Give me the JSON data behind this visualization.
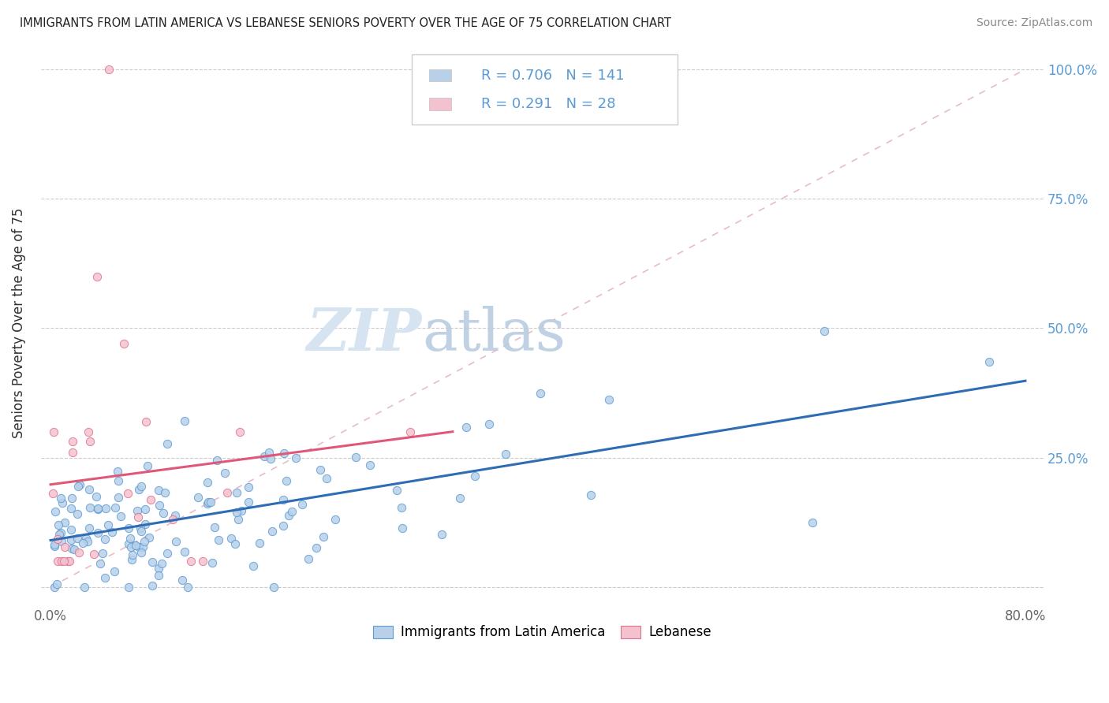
{
  "title": "IMMIGRANTS FROM LATIN AMERICA VS LEBANESE SENIORS POVERTY OVER THE AGE OF 75 CORRELATION CHART",
  "source": "Source: ZipAtlas.com",
  "ylabel": "Seniors Poverty Over the Age of 75",
  "watermark_zip": "ZIP",
  "watermark_atlas": "atlas",
  "legend_label_1": "Immigrants from Latin America",
  "legend_label_2": "Lebanese",
  "R1": 0.706,
  "N1": 141,
  "R2": 0.291,
  "N2": 28,
  "color_blue_fill": "#b8d0e8",
  "color_blue_edge": "#5b9bd5",
  "color_pink_fill": "#f4c2ce",
  "color_pink_edge": "#e07090",
  "trendline_blue": "#2e6db4",
  "trendline_pink": "#e05878",
  "trendline_pink_dashed": "#e8a0b0",
  "xmin": 0.0,
  "xmax": 0.8,
  "ymin": -0.03,
  "ymax": 1.05,
  "xtick_labels": [
    "0.0%",
    "",
    "",
    "",
    "",
    "",
    "",
    "",
    "80.0%"
  ],
  "ytick_labels_right": [
    "",
    "25.0%",
    "50.0%",
    "75.0%",
    "100.0%"
  ],
  "grid_color": "#cccccc",
  "bg_color": "#ffffff",
  "title_color": "#222222",
  "source_color": "#888888",
  "axis_label_color": "#333333",
  "tick_color": "#666666",
  "legend_edge_color": "#cccccc",
  "watermark_color": "#d5e4f0"
}
